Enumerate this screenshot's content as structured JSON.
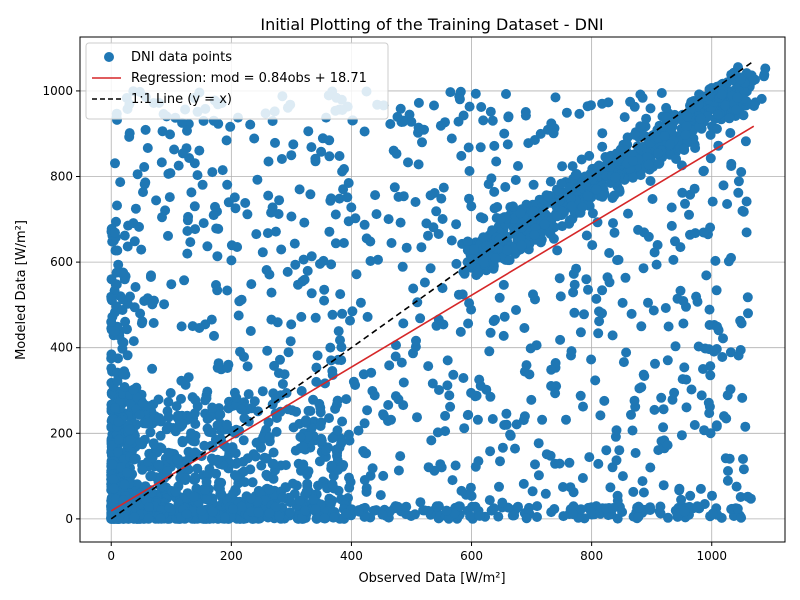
{
  "chart_data": {
    "type": "scatter",
    "title": "Initial Plotting of the Training Dataset - DNI",
    "xlabel": "Observed Data [W/m²]",
    "ylabel": "Modeled Data [W/m²]",
    "xlim": [
      -52,
      1122
    ],
    "ylim": [
      -54,
      1126
    ],
    "xticks": [
      0,
      200,
      400,
      600,
      800,
      1000
    ],
    "yticks": [
      0,
      200,
      400,
      600,
      800,
      1000
    ],
    "xtick_labels": [
      "0",
      "200",
      "400",
      "600",
      "800",
      "1000"
    ],
    "ytick_labels": [
      "0",
      "200",
      "400",
      "600",
      "800",
      "1000"
    ],
    "grid": true,
    "legend_position": "top-left",
    "series": [
      {
        "name": "DNI data points",
        "kind": "scatter",
        "color": "#1f77b4",
        "clusters": [
          {
            "x_range": [
              0,
              400
            ],
            "y_range": [
              0,
              300
            ],
            "count": 900,
            "skew": "low-left"
          },
          {
            "x_range": [
              0,
              1060
            ],
            "y_range": [
              0,
              30
            ],
            "count": 220,
            "skew": "none"
          },
          {
            "x_range": [
              0,
              30
            ],
            "y_range": [
              0,
              700
            ],
            "count": 160,
            "skew": "low-left"
          },
          {
            "diag_from": [
              600,
              600
            ],
            "diag_to": [
              1070,
              1020
            ],
            "spread": 55,
            "count": 700
          },
          {
            "x_range": [
              0,
              1070
            ],
            "y_range": [
              0,
              1000
            ],
            "count": 900,
            "skew": "none"
          }
        ]
      },
      {
        "name": "Regression: mod = 0.84obs + 18.71",
        "kind": "line",
        "color": "#d62728",
        "x": [
          0,
          1070
        ],
        "y": [
          18.71,
          917.51
        ]
      },
      {
        "name": "1:1 Line (y = x)",
        "kind": "line",
        "style": "dashed",
        "color": "#000000",
        "x": [
          0,
          1070
        ],
        "y": [
          0,
          1070
        ]
      }
    ]
  }
}
